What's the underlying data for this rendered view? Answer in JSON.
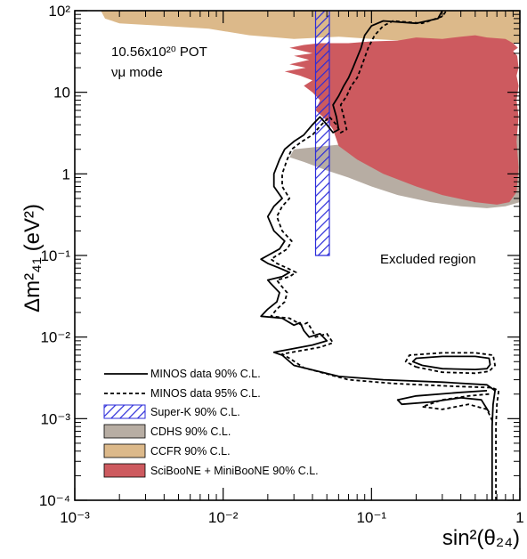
{
  "chart_data": {
    "type": "line",
    "xlabel": "sin²(θ₂₄)",
    "ylabel": "Δm²₄₁ (eV²)",
    "x_scale": "log",
    "y_scale": "log",
    "xlim": [
      0.001,
      1
    ],
    "ylim": [
      0.0001,
      100
    ],
    "x_ticks": [
      {
        "value": 0.001,
        "label": "10⁻³"
      },
      {
        "value": 0.01,
        "label": "10⁻²"
      },
      {
        "value": 0.1,
        "label": "10⁻¹"
      },
      {
        "value": 1,
        "label": "1"
      }
    ],
    "y_ticks": [
      {
        "value": 0.0001,
        "label": "10⁻⁴"
      },
      {
        "value": 0.001,
        "label": "10⁻³"
      },
      {
        "value": 0.01,
        "label": "10⁻²"
      },
      {
        "value": 0.1,
        "label": "10⁻¹"
      },
      {
        "value": 1,
        "label": "1"
      },
      {
        "value": 10,
        "label": "10"
      },
      {
        "value": 100,
        "label": "10²"
      }
    ],
    "annotations": {
      "pot": "10.56x10²⁰ POT",
      "mode": "νμ mode",
      "excluded": "Excluded region"
    },
    "legend_placement": "bottom-left",
    "legend": [
      {
        "label": "MINOS data 90% C.L.",
        "style": "solid-line"
      },
      {
        "label": "MINOS data 95% C.L.",
        "style": "dashed-line"
      },
      {
        "label": "Super-K 90% C.L.",
        "style": "hatched"
      },
      {
        "label": "CDHS 90% C.L.",
        "style": "fill"
      },
      {
        "label": "CCFR 90% C.L.",
        "style": "fill"
      },
      {
        "label": "SciBooNE + MiniBooNE 90% C.L.",
        "style": "fill"
      }
    ],
    "colors": {
      "minos": "#000000",
      "superk": "#2b2bd9",
      "cdhs": "#b7ada3",
      "ccfr": "#dcb98a",
      "sciboone": "#cd5a5f"
    },
    "series": [
      {
        "name": "MINOS data 90% C.L.",
        "points": [
          [
            0.65,
            0.0001
          ],
          [
            0.65,
            0.0008
          ],
          [
            0.66,
            0.0015
          ],
          [
            0.68,
            0.0022
          ],
          [
            0.6,
            0.0026
          ],
          [
            0.3,
            0.0028
          ],
          [
            0.12,
            0.003
          ],
          [
            0.06,
            0.0033
          ],
          [
            0.03,
            0.0045
          ],
          [
            0.025,
            0.006
          ],
          [
            0.022,
            0.0065
          ],
          [
            0.04,
            0.008
          ],
          [
            0.05,
            0.009
          ],
          [
            0.045,
            0.011
          ],
          [
            0.038,
            0.01
          ],
          [
            0.035,
            0.012
          ],
          [
            0.033,
            0.015
          ],
          [
            0.03,
            0.014
          ],
          [
            0.025,
            0.017
          ],
          [
            0.018,
            0.018
          ],
          [
            0.02,
            0.022
          ],
          [
            0.023,
            0.027
          ],
          [
            0.024,
            0.035
          ],
          [
            0.021,
            0.045
          ],
          [
            0.02,
            0.05
          ],
          [
            0.025,
            0.055
          ],
          [
            0.028,
            0.062
          ],
          [
            0.024,
            0.07
          ],
          [
            0.02,
            0.08
          ],
          [
            0.018,
            0.09
          ],
          [
            0.02,
            0.1
          ],
          [
            0.024,
            0.12
          ],
          [
            0.026,
            0.15
          ],
          [
            0.022,
            0.2
          ],
          [
            0.02,
            0.3
          ],
          [
            0.022,
            0.4
          ],
          [
            0.025,
            0.5
          ],
          [
            0.022,
            0.7
          ],
          [
            0.022,
            1
          ],
          [
            0.024,
            1.5
          ],
          [
            0.026,
            2
          ],
          [
            0.03,
            2.5
          ],
          [
            0.035,
            3
          ],
          [
            0.04,
            4
          ],
          [
            0.045,
            5
          ],
          [
            0.05,
            4
          ],
          [
            0.055,
            3.2
          ],
          [
            0.06,
            3.5
          ],
          [
            0.058,
            5
          ],
          [
            0.055,
            7
          ],
          [
            0.06,
            9
          ],
          [
            0.065,
            12
          ],
          [
            0.07,
            15
          ],
          [
            0.075,
            20
          ],
          [
            0.085,
            35
          ],
          [
            0.09,
            50
          ],
          [
            0.1,
            65
          ],
          [
            0.12,
            75
          ],
          [
            0.2,
            70
          ],
          [
            0.28,
            80
          ],
          [
            0.3,
            100
          ]
        ]
      },
      {
        "name": "MINOS data 95% C.L.",
        "points": [
          [
            0.69,
            0.0001
          ],
          [
            0.69,
            0.0008
          ],
          [
            0.7,
            0.0015
          ],
          [
            0.72,
            0.0022
          ],
          [
            0.65,
            0.0024
          ],
          [
            0.35,
            0.0025
          ],
          [
            0.14,
            0.0027
          ],
          [
            0.07,
            0.003
          ],
          [
            0.035,
            0.0042
          ],
          [
            0.028,
            0.0055
          ],
          [
            0.025,
            0.0062
          ],
          [
            0.045,
            0.0075
          ],
          [
            0.055,
            0.0085
          ],
          [
            0.05,
            0.011
          ],
          [
            0.042,
            0.01
          ],
          [
            0.04,
            0.012
          ],
          [
            0.037,
            0.015
          ],
          [
            0.034,
            0.014
          ],
          [
            0.028,
            0.017
          ],
          [
            0.021,
            0.018
          ],
          [
            0.023,
            0.022
          ],
          [
            0.026,
            0.027
          ],
          [
            0.027,
            0.035
          ],
          [
            0.024,
            0.045
          ],
          [
            0.023,
            0.05
          ],
          [
            0.028,
            0.055
          ],
          [
            0.031,
            0.062
          ],
          [
            0.027,
            0.07
          ],
          [
            0.023,
            0.08
          ],
          [
            0.021,
            0.09
          ],
          [
            0.023,
            0.1
          ],
          [
            0.027,
            0.12
          ],
          [
            0.029,
            0.15
          ],
          [
            0.025,
            0.2
          ],
          [
            0.023,
            0.3
          ],
          [
            0.025,
            0.4
          ],
          [
            0.028,
            0.5
          ],
          [
            0.025,
            0.7
          ],
          [
            0.025,
            1
          ],
          [
            0.027,
            1.5
          ],
          [
            0.029,
            2
          ],
          [
            0.034,
            2.5
          ],
          [
            0.04,
            3
          ],
          [
            0.046,
            4
          ],
          [
            0.052,
            5
          ],
          [
            0.058,
            4
          ],
          [
            0.062,
            3.2
          ],
          [
            0.068,
            3.5
          ],
          [
            0.065,
            5
          ],
          [
            0.062,
            7
          ],
          [
            0.068,
            9
          ],
          [
            0.073,
            12
          ],
          [
            0.08,
            15
          ],
          [
            0.085,
            20
          ],
          [
            0.095,
            35
          ],
          [
            0.105,
            50
          ],
          [
            0.12,
            65
          ],
          [
            0.14,
            75
          ],
          [
            0.22,
            70
          ],
          [
            0.3,
            85
          ],
          [
            0.32,
            100
          ]
        ]
      },
      {
        "name": "MINOS data 90% C.L. island",
        "points": [
          [
            0.22,
            0.0045
          ],
          [
            0.3,
            0.0041
          ],
          [
            0.5,
            0.004
          ],
          [
            0.6,
            0.0041
          ],
          [
            0.63,
            0.0046
          ],
          [
            0.62,
            0.0055
          ],
          [
            0.5,
            0.0058
          ],
          [
            0.3,
            0.0058
          ],
          [
            0.2,
            0.0055
          ],
          [
            0.19,
            0.005
          ],
          [
            0.22,
            0.0045
          ]
        ]
      },
      {
        "name": "MINOS data 95% C.L. island",
        "points": [
          [
            0.2,
            0.0043
          ],
          [
            0.3,
            0.0037
          ],
          [
            0.5,
            0.0036
          ],
          [
            0.62,
            0.0038
          ],
          [
            0.68,
            0.0045
          ],
          [
            0.66,
            0.006
          ],
          [
            0.5,
            0.0064
          ],
          [
            0.3,
            0.0064
          ],
          [
            0.18,
            0.006
          ],
          [
            0.17,
            0.005
          ],
          [
            0.2,
            0.0043
          ]
        ]
      },
      {
        "name": "MINOS data 90% C.L. lobe",
        "points": [
          [
            0.6,
            0.0022
          ],
          [
            0.4,
            0.0021
          ],
          [
            0.2,
            0.0019
          ],
          [
            0.15,
            0.0017
          ],
          [
            0.16,
            0.0015
          ],
          [
            0.25,
            0.0016
          ],
          [
            0.4,
            0.0018
          ],
          [
            0.55,
            0.0017
          ],
          [
            0.62,
            0.0012
          ]
        ]
      },
      {
        "name": "MINOS data 95% C.L. lobe",
        "points": [
          [
            0.62,
            0.002
          ],
          [
            0.45,
            0.0019
          ],
          [
            0.3,
            0.0017
          ],
          [
            0.22,
            0.0014
          ],
          [
            0.3,
            0.0013
          ],
          [
            0.45,
            0.0015
          ],
          [
            0.6,
            0.0013
          ],
          [
            0.66,
            0.0009
          ]
        ]
      }
    ],
    "regions": [
      {
        "name": "CCFR 90% C.L.",
        "points": [
          [
            0.0015,
            100
          ],
          [
            0.0016,
            80
          ],
          [
            0.002,
            70
          ],
          [
            0.004,
            65
          ],
          [
            0.008,
            60
          ],
          [
            0.015,
            50
          ],
          [
            0.03,
            45
          ],
          [
            0.06,
            48
          ],
          [
            0.1,
            45
          ],
          [
            0.2,
            42
          ],
          [
            0.35,
            40
          ],
          [
            0.6,
            40
          ],
          [
            1,
            40
          ],
          [
            1,
            100
          ]
        ]
      },
      {
        "name": "CDHS 90% C.L.",
        "points": [
          [
            0.03,
            2
          ],
          [
            0.028,
            1.6
          ],
          [
            0.035,
            1.4
          ],
          [
            0.05,
            1.1
          ],
          [
            0.07,
            0.9
          ],
          [
            0.1,
            0.7
          ],
          [
            0.15,
            0.55
          ],
          [
            0.25,
            0.45
          ],
          [
            0.4,
            0.4
          ],
          [
            0.6,
            0.38
          ],
          [
            0.8,
            0.4
          ],
          [
            1,
            0.45
          ],
          [
            1,
            3
          ],
          [
            0.3,
            3
          ],
          [
            0.1,
            2.5
          ],
          [
            0.05,
            2.2
          ]
        ]
      },
      {
        "name": "SciBooNE + MiniBooNE 90% C.L.",
        "points": [
          [
            0.045,
            40
          ],
          [
            0.035,
            38
          ],
          [
            0.028,
            35
          ],
          [
            0.04,
            30
          ],
          [
            0.03,
            28
          ],
          [
            0.038,
            25
          ],
          [
            0.028,
            22
          ],
          [
            0.036,
            20
          ],
          [
            0.026,
            18
          ],
          [
            0.033,
            16
          ],
          [
            0.04,
            14
          ],
          [
            0.035,
            12
          ],
          [
            0.04,
            10
          ],
          [
            0.045,
            8
          ],
          [
            0.042,
            6
          ],
          [
            0.05,
            4.5
          ],
          [
            0.055,
            3.5
          ],
          [
            0.06,
            2.2
          ],
          [
            0.08,
            1.5
          ],
          [
            0.12,
            1
          ],
          [
            0.2,
            0.7
          ],
          [
            0.3,
            0.55
          ],
          [
            0.5,
            0.45
          ],
          [
            0.7,
            0.42
          ],
          [
            0.85,
            0.45
          ],
          [
            0.95,
            0.6
          ],
          [
            0.98,
            1.2
          ],
          [
            0.95,
            2.5
          ],
          [
            0.98,
            5
          ],
          [
            0.95,
            8
          ],
          [
            0.98,
            12
          ],
          [
            0.95,
            16
          ],
          [
            0.98,
            20
          ],
          [
            0.96,
            28
          ],
          [
            0.9,
            32
          ],
          [
            0.97,
            35
          ],
          [
            0.9,
            40
          ],
          [
            0.8,
            45
          ],
          [
            0.6,
            47
          ],
          [
            0.5,
            50
          ],
          [
            0.4,
            48
          ],
          [
            0.3,
            45
          ],
          [
            0.2,
            47
          ],
          [
            0.15,
            43
          ],
          [
            0.1,
            42
          ],
          [
            0.07,
            40
          ]
        ]
      },
      {
        "name": "Super-K 90% C.L.",
        "points": [
          [
            0.042,
            0.1
          ],
          [
            0.052,
            0.1
          ],
          [
            0.052,
            100
          ],
          [
            0.042,
            100
          ]
        ]
      }
    ]
  }
}
